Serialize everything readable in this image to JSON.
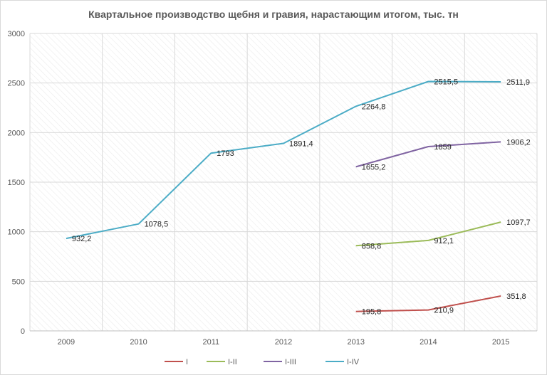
{
  "chart_data": {
    "type": "line",
    "title": "Квартальное производство щебня и гравия, нарастающим итогом, тыс. тн",
    "xlabel": "",
    "ylabel": "",
    "categories": [
      "2009",
      "2010",
      "2011",
      "2012",
      "2013",
      "2014",
      "2015"
    ],
    "ylim": [
      0,
      3000
    ],
    "yticks": [
      "0",
      "500",
      "1000",
      "1500",
      "2000",
      "2500",
      "3000"
    ],
    "grid": true,
    "legend_position": "bottom",
    "series": [
      {
        "name": "I",
        "color": "#c0504d",
        "values": [
          null,
          null,
          null,
          null,
          195.8,
          210.9,
          351.8
        ],
        "labels": [
          null,
          null,
          null,
          null,
          "195,8",
          "210,9",
          "351,8"
        ]
      },
      {
        "name": "I-II",
        "color": "#9bbb59",
        "values": [
          null,
          null,
          null,
          null,
          858.8,
          912.1,
          1097.7
        ],
        "labels": [
          null,
          null,
          null,
          null,
          "858,8",
          "912,1",
          "1097,7"
        ]
      },
      {
        "name": "I-III",
        "color": "#8064a2",
        "values": [
          null,
          null,
          null,
          null,
          1655.2,
          1859,
          1906.2
        ],
        "labels": [
          null,
          null,
          null,
          null,
          "1655,2",
          "1859",
          "1906,2"
        ]
      },
      {
        "name": "I-IV",
        "color": "#4bacc6",
        "values": [
          932.2,
          1078.5,
          1793,
          1891.4,
          2264.8,
          2515.5,
          2511.9
        ],
        "labels": [
          "932,2",
          "1078,5",
          "1793",
          "1891,4",
          "2264,8",
          "2515,5",
          "2511,9"
        ]
      }
    ]
  }
}
